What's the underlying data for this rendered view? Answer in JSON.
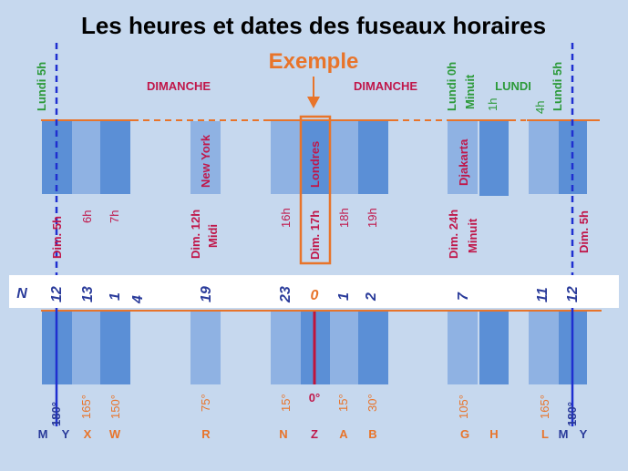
{
  "title": "Les heures et dates des fuseaux horaires",
  "example_label": "Exemple",
  "colors": {
    "background": "#c6d8ee",
    "dark_band": "#5b8fd6",
    "light_band": "#8fb2e3",
    "orange": "#e8742a",
    "blue_line": "#1f2fd0",
    "red_line": "#c0143c",
    "crimson": "#c0174a",
    "green": "#2c9a3a",
    "dark_blue_text": "#2a3b9a"
  },
  "day_labels": {
    "lundi_5h": "Lundi 5h",
    "dimanche_left": "DIMANCHE",
    "dimanche_right": "DIMANCHE",
    "lundi_0h": "Lundi 0h",
    "minuit_top": "Minuit",
    "lundi": "LUNDI",
    "h1": "1h",
    "h4": "4h",
    "lundi_5h_right": "Lundi 5h"
  },
  "city_labels": {
    "new_york": "New York",
    "londres": "Londres",
    "djakarta": "Djakarta"
  },
  "hour_labels": {
    "dim_5h": "Dim. 5h",
    "h6": "6h",
    "h7": "7h",
    "dim_12h": "Dim. 12h",
    "midi": "Midi",
    "h16": "16h",
    "dim_17h": "Dim. 17h",
    "h18": "18h",
    "h19": "19h",
    "dim_24h": "Dim. 24h",
    "minuit": "Minuit",
    "dim_5h_right": "Dim. 5h"
  },
  "strip": {
    "letter": "N",
    "numbers": [
      "12",
      "13",
      "1",
      "4",
      "19",
      "23",
      "0",
      "1",
      "2",
      "7",
      "11",
      "12"
    ]
  },
  "degree_labels": [
    "180°",
    "165°",
    "150°",
    "75°",
    "15°",
    "0°",
    "15°",
    "30°",
    "105°",
    "165°",
    "180°"
  ],
  "zone_letters": [
    "M",
    "Y",
    "X",
    "W",
    "R",
    "N",
    "Z",
    "A",
    "B",
    "G",
    "H",
    "L",
    "M",
    "Y"
  ]
}
